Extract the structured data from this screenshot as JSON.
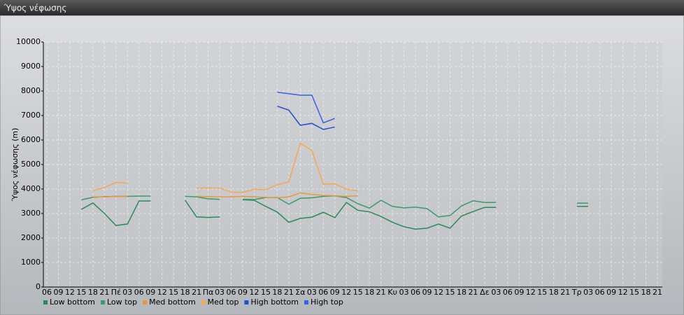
{
  "chart_data": {
    "type": "line",
    "title": "Ύψος νέφωσης",
    "y_label": "Ύψος νέφωσης (m)",
    "categories": [
      "06",
      "09",
      "12",
      "15",
      "18",
      "21",
      "Πέ",
      "03",
      "06",
      "09",
      "12",
      "15",
      "18",
      "21",
      "Πα",
      "03",
      "06",
      "09",
      "12",
      "15",
      "18",
      "21",
      "Σα",
      "03",
      "06",
      "09",
      "12",
      "15",
      "18",
      "21",
      "Κυ",
      "03",
      "06",
      "09",
      "12",
      "15",
      "18",
      "21",
      "Δε",
      "03",
      "06",
      "09",
      "12",
      "15",
      "18",
      "21",
      "Τρ",
      "03",
      "06",
      "09",
      "12",
      "15",
      "18",
      "21"
    ],
    "ylim": [
      0,
      10000
    ],
    "yticks": [
      0,
      1000,
      2000,
      3000,
      4000,
      5000,
      6000,
      7000,
      8000,
      9000,
      10000
    ],
    "grid": true,
    "series": [
      {
        "name": "Low bottom",
        "color": "#2a8a5a",
        "values": [
          null,
          null,
          null,
          3170,
          3430,
          3000,
          2510,
          2570,
          3510,
          3510,
          null,
          null,
          3540,
          2860,
          2840,
          2860,
          null,
          3560,
          3540,
          3290,
          3060,
          2640,
          2800,
          2850,
          3050,
          2830,
          3450,
          3130,
          3070,
          2880,
          2640,
          2460,
          2360,
          2400,
          2570,
          2400,
          2900,
          3080,
          3250,
          3250,
          null,
          null,
          null,
          null,
          null,
          null,
          3290,
          3290,
          null,
          null,
          null,
          null,
          null,
          null
        ]
      },
      {
        "name": "Low top",
        "color": "#3c9a6a",
        "values": [
          null,
          null,
          null,
          3560,
          3660,
          3690,
          3700,
          3700,
          3710,
          3710,
          null,
          null,
          3700,
          3680,
          3600,
          3580,
          null,
          3580,
          3570,
          3650,
          3650,
          3380,
          3620,
          3640,
          3700,
          3720,
          3650,
          3400,
          3220,
          3540,
          3290,
          3230,
          3260,
          3200,
          2860,
          2920,
          3310,
          3520,
          3450,
          3450,
          null,
          null,
          null,
          null,
          null,
          null,
          3420,
          3420,
          null,
          null,
          null,
          null,
          null,
          null
        ]
      },
      {
        "name": "Med bottom",
        "color": "#e8983a",
        "values": [
          null,
          null,
          null,
          null,
          3680,
          3680,
          3700,
          3690,
          null,
          null,
          null,
          null,
          null,
          3700,
          3690,
          3680,
          3680,
          3700,
          3680,
          3660,
          3640,
          3680,
          3840,
          3780,
          3740,
          3720,
          3700,
          3720,
          null,
          null,
          null,
          null,
          null,
          null,
          null,
          null,
          null,
          null,
          null,
          null,
          null,
          null,
          null,
          null,
          null,
          null,
          null,
          null,
          null,
          null,
          null,
          null,
          null,
          null
        ]
      },
      {
        "name": "Med top",
        "color": "#f5a850",
        "values": [
          null,
          null,
          null,
          null,
          3940,
          4060,
          4270,
          4240,
          null,
          null,
          null,
          null,
          null,
          4040,
          4040,
          4040,
          3870,
          3860,
          3990,
          3970,
          4170,
          4290,
          5870,
          5570,
          4200,
          4210,
          3980,
          3930,
          null,
          null,
          null,
          null,
          null,
          null,
          null,
          null,
          null,
          null,
          null,
          null,
          null,
          null,
          null,
          null,
          null,
          null,
          null,
          null,
          null,
          null,
          null,
          null,
          null,
          null
        ]
      },
      {
        "name": "High bottom",
        "color": "#2050d0",
        "values": [
          null,
          null,
          null,
          null,
          null,
          null,
          null,
          null,
          null,
          null,
          null,
          null,
          null,
          null,
          null,
          null,
          null,
          null,
          null,
          null,
          7380,
          7220,
          6600,
          6680,
          6430,
          6530,
          null,
          null,
          null,
          null,
          null,
          null,
          null,
          null,
          null,
          null,
          null,
          null,
          null,
          null,
          null,
          null,
          null,
          null,
          null,
          null,
          null,
          null,
          null,
          null,
          null,
          null,
          null,
          null
        ]
      },
      {
        "name": "High top",
        "color": "#3464e4",
        "values": [
          null,
          null,
          null,
          null,
          null,
          null,
          null,
          null,
          null,
          null,
          null,
          null,
          null,
          null,
          null,
          null,
          null,
          null,
          null,
          null,
          7950,
          7890,
          7830,
          7830,
          6700,
          6880,
          null,
          null,
          null,
          null,
          null,
          null,
          null,
          null,
          null,
          null,
          null,
          null,
          null,
          null,
          null,
          null,
          null,
          null,
          null,
          null,
          null,
          null,
          null,
          null,
          null,
          null,
          null,
          null
        ]
      }
    ]
  }
}
